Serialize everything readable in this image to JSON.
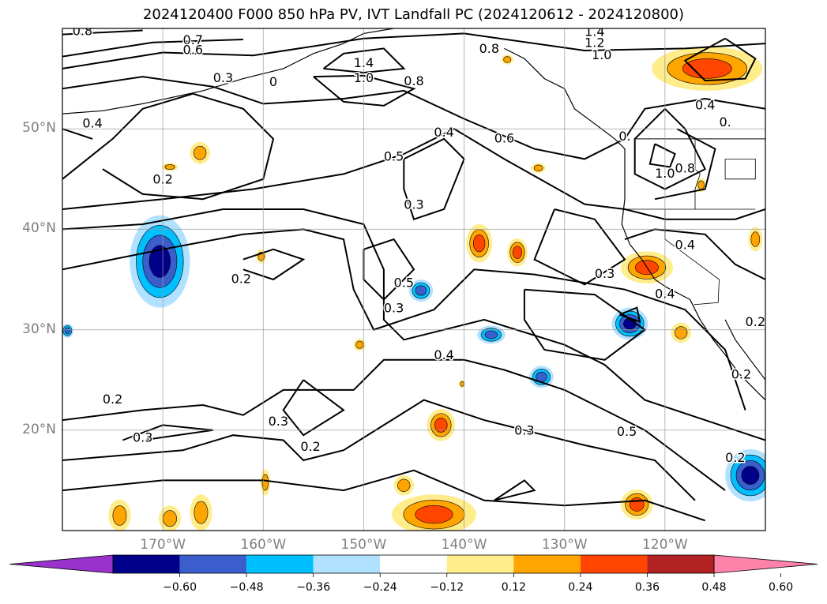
{
  "title": "2024120400 F000 850 hPa PV, IVT Landfall PC (2024120612 - 2024120800)",
  "map": {
    "lon_range": [
      -180,
      -110
    ],
    "lat_range": [
      10,
      60
    ],
    "lat_ticks": [
      {
        "value": 50,
        "label": "50°N"
      },
      {
        "value": 40,
        "label": "40°N"
      },
      {
        "value": 30,
        "label": "30°N"
      },
      {
        "value": 20,
        "label": "20°N"
      }
    ],
    "lon_ticks": [
      {
        "value": -170,
        "label": "170°W"
      },
      {
        "value": -160,
        "label": "160°W"
      },
      {
        "value": -150,
        "label": "150°W"
      },
      {
        "value": -140,
        "label": "140°W"
      },
      {
        "value": -130,
        "label": "130°W"
      },
      {
        "value": -120,
        "label": "120°W"
      }
    ],
    "grid": true,
    "contour_labels": [
      {
        "text": "0.8",
        "lon": -178,
        "lat": 59.7
      },
      {
        "text": "0.7",
        "lon": -167,
        "lat": 58.8
      },
      {
        "text": "0.6",
        "lon": -167,
        "lat": 57.8
      },
      {
        "text": "0.3",
        "lon": -164,
        "lat": 55.0
      },
      {
        "text": "0",
        "lon": -159,
        "lat": 54.6
      },
      {
        "text": "0.4",
        "lon": -177,
        "lat": 50.5
      },
      {
        "text": "1.4",
        "lon": -150,
        "lat": 56.5
      },
      {
        "text": "1.0",
        "lon": -150,
        "lat": 55.0
      },
      {
        "text": "0.8",
        "lon": -145,
        "lat": 54.7
      },
      {
        "text": "0.8",
        "lon": -137.5,
        "lat": 57.9
      },
      {
        "text": "1.4",
        "lon": -127,
        "lat": 59.6
      },
      {
        "text": "1.2",
        "lon": -127,
        "lat": 58.5
      },
      {
        "text": "1.0",
        "lon": -126.3,
        "lat": 57.3
      },
      {
        "text": "0.4",
        "lon": -116,
        "lat": 52.3
      },
      {
        "text": "0.",
        "lon": -114,
        "lat": 50.6
      },
      {
        "text": "0.4",
        "lon": -142,
        "lat": 49.6
      },
      {
        "text": "0.5",
        "lon": -147,
        "lat": 47.2
      },
      {
        "text": "0.6",
        "lon": -136,
        "lat": 49.0
      },
      {
        "text": "0.",
        "lon": -124,
        "lat": 49.2
      },
      {
        "text": "1.0",
        "lon": -120,
        "lat": 45.5
      },
      {
        "text": "0.8",
        "lon": -118,
        "lat": 46.0
      },
      {
        "text": "0.2",
        "lon": -170,
        "lat": 44.9
      },
      {
        "text": "0.3",
        "lon": -145,
        "lat": 42.4
      },
      {
        "text": "0.4",
        "lon": -118,
        "lat": 38.4
      },
      {
        "text": "0.2",
        "lon": -162.2,
        "lat": 35.0
      },
      {
        "text": "0.5",
        "lon": -146,
        "lat": 34.6
      },
      {
        "text": "0.3",
        "lon": -147,
        "lat": 32.1
      },
      {
        "text": "0.3",
        "lon": -126,
        "lat": 35.5
      },
      {
        "text": "0.4",
        "lon": -120,
        "lat": 33.5
      },
      {
        "text": "0.2",
        "lon": -111,
        "lat": 30.7
      },
      {
        "text": "0.4",
        "lon": -142,
        "lat": 27.4
      },
      {
        "text": "0.2",
        "lon": -112.4,
        "lat": 25.5
      },
      {
        "text": "0.2",
        "lon": -175,
        "lat": 23.0
      },
      {
        "text": "0.3",
        "lon": -172,
        "lat": 19.2
      },
      {
        "text": "0.3",
        "lon": -158.5,
        "lat": 20.8
      },
      {
        "text": "0.2",
        "lon": -155.3,
        "lat": 18.3
      },
      {
        "text": "0.3",
        "lon": -134,
        "lat": 19.9
      },
      {
        "text": "0.5",
        "lon": -123.8,
        "lat": 19.8
      },
      {
        "text": "0.2",
        "lon": -113,
        "lat": 17.2
      }
    ],
    "pc_fill_blobs": [
      {
        "lon": -170.3,
        "lat": 36.8,
        "rx": 3.0,
        "ry": 4.6,
        "level": -0.48
      },
      {
        "lon": -144.3,
        "lat": 33.9,
        "rx": 1.2,
        "ry": 1.1,
        "level": -0.36
      },
      {
        "lon": -137.3,
        "lat": 29.5,
        "rx": 1.4,
        "ry": 0.9,
        "level": -0.36
      },
      {
        "lon": -132.3,
        "lat": 25.3,
        "rx": 1.2,
        "ry": 1.1,
        "level": -0.36
      },
      {
        "lon": -123.5,
        "lat": 30.6,
        "rx": 1.8,
        "ry": 1.6,
        "level": -0.48
      },
      {
        "lon": -111.5,
        "lat": 15.5,
        "rx": 2.5,
        "ry": 2.6,
        "level": -0.48
      },
      {
        "lon": -179.5,
        "lat": 29.9,
        "rx": 0.6,
        "ry": 0.7,
        "level": -0.36
      },
      {
        "lon": -115.8,
        "lat": 56.0,
        "rx": 5.5,
        "ry": 2.2,
        "level": 0.36
      },
      {
        "lon": -166.3,
        "lat": 47.6,
        "rx": 1.0,
        "ry": 1.1,
        "level": 0.24
      },
      {
        "lon": -169.3,
        "lat": 46.2,
        "rx": 0.8,
        "ry": 0.4,
        "level": 0.24
      },
      {
        "lon": -138.5,
        "lat": 38.6,
        "rx": 1.3,
        "ry": 1.9,
        "level": 0.36
      },
      {
        "lon": -134.7,
        "lat": 37.7,
        "rx": 1.0,
        "ry": 1.4,
        "level": 0.36
      },
      {
        "lon": -160.2,
        "lat": 37.3,
        "rx": 0.5,
        "ry": 0.7,
        "level": 0.24
      },
      {
        "lon": -121.8,
        "lat": 36.2,
        "rx": 2.6,
        "ry": 1.6,
        "level": 0.36
      },
      {
        "lon": -118.4,
        "lat": 29.7,
        "rx": 1.0,
        "ry": 1.0,
        "level": 0.24
      },
      {
        "lon": -150.4,
        "lat": 28.5,
        "rx": 0.6,
        "ry": 0.6,
        "level": 0.24
      },
      {
        "lon": -142.3,
        "lat": 20.5,
        "rx": 1.4,
        "ry": 1.6,
        "level": 0.36
      },
      {
        "lon": -146.0,
        "lat": 14.5,
        "rx": 1.0,
        "ry": 1.0,
        "level": 0.24
      },
      {
        "lon": -143.0,
        "lat": 11.6,
        "rx": 4.2,
        "ry": 2.0,
        "level": 0.36
      },
      {
        "lon": -122.8,
        "lat": 12.6,
        "rx": 1.6,
        "ry": 1.5,
        "level": 0.36
      },
      {
        "lon": -135.7,
        "lat": 56.9,
        "rx": 0.6,
        "ry": 0.5,
        "level": 0.24
      },
      {
        "lon": -116.4,
        "lat": 44.4,
        "rx": 0.5,
        "ry": 0.7,
        "level": 0.24
      },
      {
        "lon": -111,
        "lat": 39.0,
        "rx": 0.7,
        "ry": 1.2,
        "level": 0.24
      },
      {
        "lon": -174.3,
        "lat": 11.5,
        "rx": 1.1,
        "ry": 1.6,
        "level": 0.24
      },
      {
        "lon": -169.3,
        "lat": 11.2,
        "rx": 1.1,
        "ry": 1.3,
        "level": 0.24
      },
      {
        "lon": -166.2,
        "lat": 11.8,
        "rx": 1.1,
        "ry": 1.8,
        "level": 0.24
      },
      {
        "lon": -159.8,
        "lat": 14.8,
        "rx": 0.5,
        "ry": 1.3,
        "level": 0.24
      },
      {
        "lon": -132.6,
        "lat": 46.1,
        "rx": 0.7,
        "ry": 0.5,
        "level": 0.24
      },
      {
        "lon": -140.2,
        "lat": 24.6,
        "rx": 0.3,
        "ry": 0.4,
        "level": 0.24
      }
    ]
  },
  "colorbar": {
    "levels": [
      -0.72,
      -0.6,
      -0.48,
      -0.36,
      -0.24,
      -0.12,
      0.12,
      0.24,
      0.36,
      0.48,
      0.6,
      0.72
    ],
    "colors": [
      "#9932cc",
      "#00008b",
      "#3a5fcd",
      "#00bfff",
      "#b0e2ff",
      "#ffffff",
      "#ffec8b",
      "#ffa500",
      "#ff4500",
      "#b22222",
      "#ff82ab"
    ],
    "extend": "both",
    "tick_labels": [
      "−0.60",
      "−0.48",
      "−0.36",
      "−0.24",
      "−0.12",
      "0.12",
      "0.24",
      "0.36",
      "0.48",
      "0.60"
    ],
    "tick_values": [
      -0.6,
      -0.48,
      -0.36,
      -0.24,
      -0.12,
      0.12,
      0.24,
      0.36,
      0.48,
      0.6
    ]
  }
}
